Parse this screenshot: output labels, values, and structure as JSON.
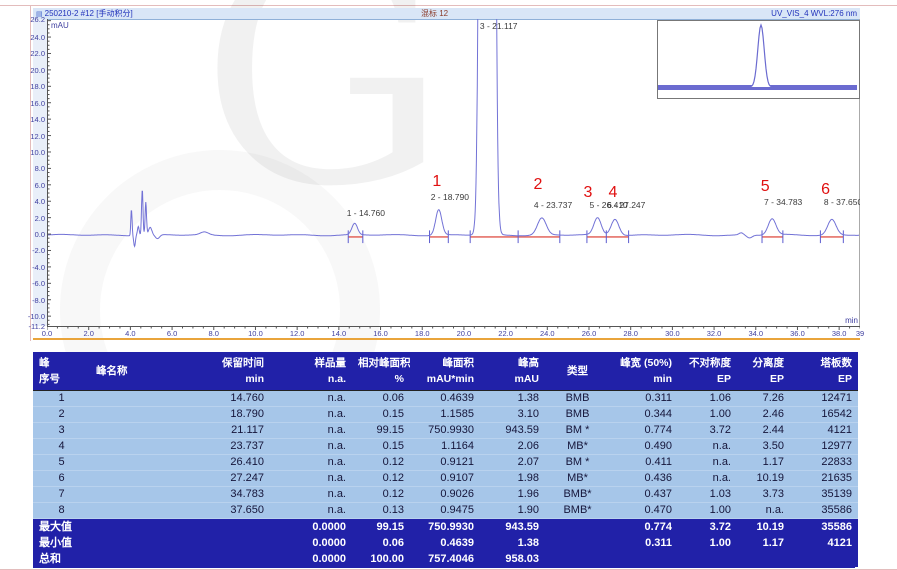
{
  "chromatogram": {
    "watermark": "G",
    "header": {
      "left": "250210-2 #12 [手动积分]",
      "center": "混标 12",
      "right": "UV_VIS_4 WVL:276 nm"
    },
    "y_unit": "mAU",
    "x_unit": "min",
    "y_tick_labels": [
      "26.2",
      "24.0",
      "22.0",
      "20.0",
      "18.0",
      "16.0",
      "14.0",
      "12.0",
      "10.0",
      "8.0",
      "6.0",
      "4.0",
      "2.0",
      "0.0",
      "-2.0",
      "-4.0",
      "-6.0",
      "-8.0",
      "-10.0",
      "-11.2"
    ],
    "x_tick_labels": [
      "0.0",
      "2.0",
      "4.0",
      "6.0",
      "8.0",
      "10.0",
      "12.0",
      "14.0",
      "16.0",
      "18.0",
      "20.0",
      "22.0",
      "24.0",
      "26.0",
      "28.0",
      "30.0",
      "32.0",
      "34.0",
      "36.0",
      "38.0",
      "39"
    ]
  },
  "chart_data": {
    "type": "line",
    "title": "250210-2 #12 [手动积分] 混标 12 UV_VIS_4 WVL:276 nm",
    "xlabel": "min",
    "ylabel": "mAU",
    "x_range": [
      0,
      39
    ],
    "y_range": [
      -11.2,
      26.2
    ],
    "trace_color": "#7272d6",
    "integration_color": "#e0584e",
    "label_color": "#e01010",
    "peaks": [
      {
        "no": 1,
        "rt": 14.76,
        "height": 1.38,
        "width50": 0.311
      },
      {
        "no": 2,
        "rt": 18.79,
        "height": 3.1,
        "width50": 0.344
      },
      {
        "no": 3,
        "rt": 21.117,
        "height": 943.59,
        "width50": 0.774,
        "draw_w": 0.4
      },
      {
        "no": 4,
        "rt": 23.737,
        "height": 2.06,
        "width50": 0.49
      },
      {
        "no": 5,
        "rt": 26.41,
        "height": 2.07,
        "width50": 0.411
      },
      {
        "no": 6,
        "rt": 27.247,
        "height": 1.98,
        "width50": 0.436
      },
      {
        "no": 7,
        "rt": 34.783,
        "height": 1.96,
        "width50": 0.437
      },
      {
        "no": 8,
        "rt": 37.65,
        "height": 1.9,
        "width50": 0.47
      }
    ],
    "unintegrated_features": [
      [
        4.05,
        3.2,
        0.07
      ],
      [
        4.2,
        -1.3,
        0.09
      ],
      [
        4.38,
        1.1,
        0.1
      ],
      [
        4.57,
        5.6,
        0.08
      ],
      [
        4.74,
        4.0,
        0.08
      ],
      [
        4.95,
        0.9,
        0.18
      ],
      [
        5.3,
        -0.5,
        0.25
      ],
      [
        7.55,
        0.35,
        0.45
      ],
      [
        33.3,
        0.25,
        0.25
      ],
      [
        33.7,
        -0.35,
        0.3
      ]
    ],
    "integration_segments": [
      [
        14.45,
        15.15
      ],
      [
        18.35,
        19.25
      ],
      [
        20.3,
        24.6
      ],
      [
        25.9,
        27.9
      ],
      [
        34.3,
        35.3
      ],
      [
        37.1,
        38.2
      ]
    ],
    "baseline_ticks": [
      14.45,
      15.15,
      18.35,
      19.25,
      20.3,
      22.6,
      24.6,
      25.9,
      26.83,
      27.9,
      34.3,
      35.3,
      37.1,
      38.2
    ],
    "peak_labels": [
      {
        "text": "1 - 14.760",
        "t": 14.76,
        "y": 197
      },
      {
        "text": "2 - 18.790",
        "t": 18.79,
        "y": 181
      },
      {
        "text": "3 - 21.117",
        "t": 21.15,
        "y": 10
      },
      {
        "text": "4 - 23.737",
        "t": 23.74,
        "y": 189
      },
      {
        "text": "5 - 26.410",
        "t": 26.41,
        "y": 189
      },
      {
        "text": "6 - 27.247",
        "t": 27.25,
        "y": 189
      },
      {
        "text": "7 - 34.783",
        "t": 34.78,
        "y": 186
      },
      {
        "text": "8 - 37.650",
        "t": 37.65,
        "y": 186
      }
    ],
    "red_numbers": [
      {
        "n": "1",
        "t": 18.7,
        "y": 167
      },
      {
        "n": "2",
        "t": 23.55,
        "y": 170
      },
      {
        "n": "3",
        "t": 25.95,
        "y": 178
      },
      {
        "n": "4",
        "t": 27.15,
        "y": 178
      },
      {
        "n": "5",
        "t": 34.45,
        "y": 172
      },
      {
        "n": "6",
        "t": 37.35,
        "y": 175
      }
    ]
  },
  "table": {
    "headers": [
      [
        "峰",
        "序号"
      ],
      [
        "峰名称",
        ""
      ],
      [
        "保留时间",
        "min"
      ],
      [
        "样品量",
        "n.a."
      ],
      [
        "相对峰面积",
        "%"
      ],
      [
        "峰面积",
        "mAU*min"
      ],
      [
        "峰高",
        "mAU"
      ],
      [
        "类型",
        ""
      ],
      [
        "峰宽 (50%)",
        "min"
      ],
      [
        "不对称度",
        "EP"
      ],
      [
        "分离度",
        "EP"
      ],
      [
        "塔板数",
        "EP"
      ]
    ],
    "rows": [
      [
        "1",
        "",
        "14.760",
        "n.a.",
        "0.06",
        "0.4639",
        "1.38",
        "BMB",
        "0.311",
        "1.06",
        "7.26",
        "12471"
      ],
      [
        "2",
        "",
        "18.790",
        "n.a.",
        "0.15",
        "1.1585",
        "3.10",
        "BMB",
        "0.344",
        "1.00",
        "2.46",
        "16542"
      ],
      [
        "3",
        "",
        "21.117",
        "n.a.",
        "99.15",
        "750.9930",
        "943.59",
        "BM *",
        "0.774",
        "3.72",
        "2.44",
        "4121"
      ],
      [
        "4",
        "",
        "23.737",
        "n.a.",
        "0.15",
        "1.1164",
        "2.06",
        "MB*",
        "0.490",
        "n.a.",
        "3.50",
        "12977"
      ],
      [
        "5",
        "",
        "26.410",
        "n.a.",
        "0.12",
        "0.9121",
        "2.07",
        "BM *",
        "0.411",
        "n.a.",
        "1.17",
        "22833"
      ],
      [
        "6",
        "",
        "27.247",
        "n.a.",
        "0.12",
        "0.9107",
        "1.98",
        "MB*",
        "0.436",
        "n.a.",
        "10.19",
        "21635"
      ],
      [
        "7",
        "",
        "34.783",
        "n.a.",
        "0.12",
        "0.9026",
        "1.96",
        "BMB*",
        "0.437",
        "1.03",
        "3.73",
        "35139"
      ],
      [
        "8",
        "",
        "37.650",
        "n.a.",
        "0.13",
        "0.9475",
        "1.90",
        "BMB*",
        "0.470",
        "1.00",
        "n.a.",
        "35586"
      ]
    ],
    "summary": [
      [
        "最大值",
        "",
        "",
        "0.0000",
        "99.15",
        "750.9930",
        "943.59",
        "",
        "0.774",
        "3.72",
        "10.19",
        "35586"
      ],
      [
        "最小值",
        "",
        "",
        "0.0000",
        "0.06",
        "0.4639",
        "1.38",
        "",
        "0.311",
        "1.00",
        "1.17",
        "4121"
      ],
      [
        "总和",
        "",
        "",
        "0.0000",
        "100.00",
        "757.4046",
        "958.03",
        "",
        "",
        "",
        "",
        ""
      ]
    ]
  },
  "colors": {
    "table_header_bg": "#2121a8",
    "row_bg": "#a6c6e9",
    "summary_bg": "#2121a8",
    "accent_orange": "#e9a43b",
    "grid_pink": "#e3bcbc",
    "trace_blue": "#7272d6",
    "red_label": "#e01010"
  }
}
